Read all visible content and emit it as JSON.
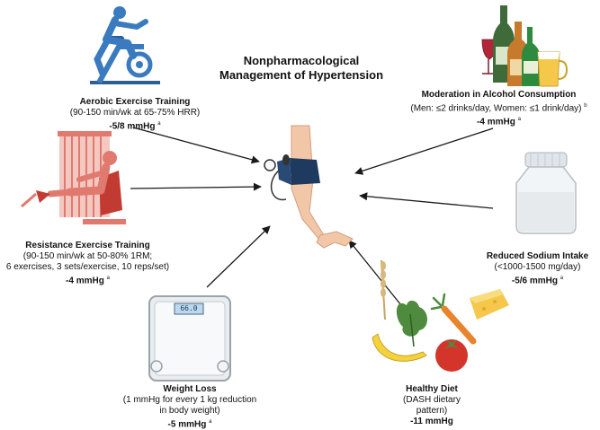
{
  "title": {
    "line1": "Nonpharmacological",
    "line2": "Management of Hypertension"
  },
  "items": {
    "aerobic": {
      "heading": "Aerobic Exercise Training",
      "detail": [
        "(90-150 min/wk at 65-75% HRR)"
      ],
      "value": "-5/8 mmHg",
      "sup": "a"
    },
    "resistance": {
      "heading": "Resistance Exercise Training",
      "detail": [
        "(90-150 min/wk at 50-80% 1RM;",
        "6 exercises, 3 sets/exercise, 10 reps/set)"
      ],
      "value": "-4 mmHg",
      "sup": "a"
    },
    "weight": {
      "heading": "Weight Loss",
      "detail": [
        "(1 mmHg for every 1 kg reduction",
        "in body weight)"
      ],
      "value": "-5 mmHg",
      "sup": "a"
    },
    "diet": {
      "heading": "Healthy Diet",
      "detail": [
        "(DASH dietary",
        "pattern)"
      ],
      "value": "-11 mmHg",
      "sup": ""
    },
    "sodium": {
      "heading": "Reduced Sodium Intake",
      "detail": [
        "(<1000-1500 mg/day)"
      ],
      "value": "-5/6 mmHg",
      "sup": "a"
    },
    "alcohol": {
      "heading": "Moderation in Alcohol Consumption",
      "detail": [
        "(Men: ≤2 drinks/day, Women: ≤1 drink/day)"
      ],
      "value": "-4 mmHg",
      "sup": "a",
      "detail_sup": "b"
    }
  },
  "scale_display": "66.0",
  "colors": {
    "arrow": "#1a1a1a",
    "bike_blue": "#3a7bbf",
    "resistance_red": "#e07a6f",
    "cuff_navy": "#1f3a5f",
    "skin": "#f2c7a8"
  },
  "icons": [
    "exercise-bike-icon",
    "weight-machine-icon",
    "bathroom-scale-icon",
    "healthy-food-icon",
    "salt-jar-icon",
    "alcohol-bottles-icon",
    "arm-blood-pressure-cuff-icon"
  ]
}
